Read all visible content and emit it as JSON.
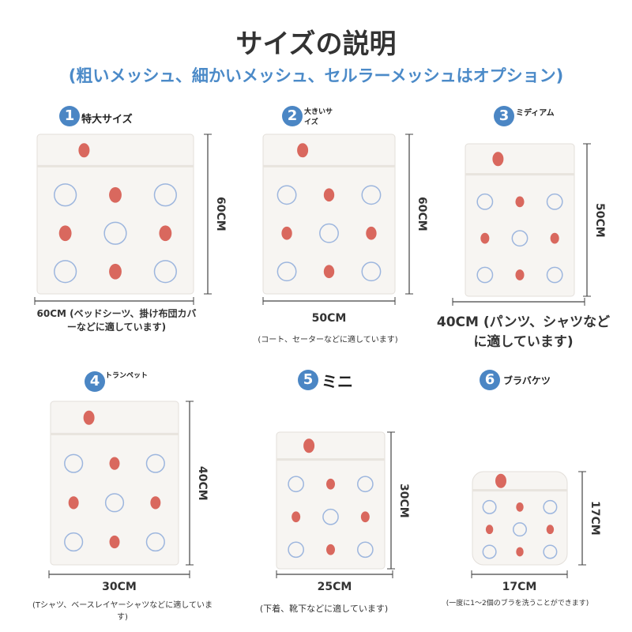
{
  "header": {
    "title": "サイズの説明",
    "subtitle": "(粗いメッシュ、細かいメッシュ、セルラーメッシュはオプション)"
  },
  "items": [
    {
      "number": "1",
      "name": "特大サイズ",
      "height": "60CM",
      "width": "60CM (ベッドシーツ、掛け布団カバーなどに適しています)"
    },
    {
      "number": "2",
      "name": "大きいサイズ",
      "height": "60CM",
      "width": "50CM",
      "note": "(コート、セーターなどに適しています)"
    },
    {
      "number": "3",
      "name": "ミディアム",
      "height": "50CM",
      "width": "40CM (パンツ、シャツなどに適しています)"
    },
    {
      "number": "4",
      "name": "トランペット",
      "height": "40CM",
      "width": "30CM",
      "note": "(Tシャツ、ベースレイヤーシャツなどに適しています)"
    },
    {
      "number": "5",
      "name": "ミニ",
      "height": "30CM",
      "width": "25CM",
      "note": "(下着、靴下などに適しています)"
    },
    {
      "number": "6",
      "name": "ブラバケツ",
      "height": "17CM",
      "width": "17CM",
      "note": "(一度に1～2個のブラを洗うことができます)"
    }
  ]
}
